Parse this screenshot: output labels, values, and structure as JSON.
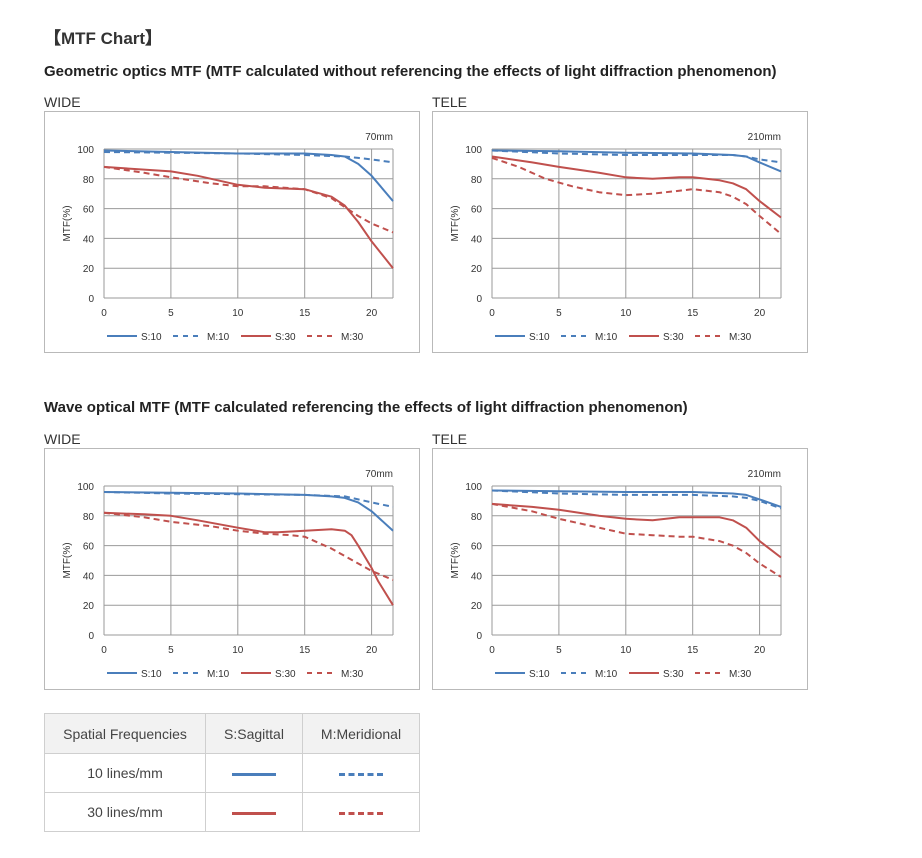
{
  "page": {
    "title": "【MTF Chart】",
    "sections": [
      {
        "heading": "Geometric optics MTF (MTF calculated without referencing the effects of light diffraction phenomenon)"
      },
      {
        "heading": "Wave optical MTF (MTF calculated referencing the effects of light diffraction phenomenon)"
      }
    ],
    "panels": [
      "WIDE",
      "TELE",
      "WIDE",
      "TELE"
    ]
  },
  "colors": {
    "sagittal_10": "#4a7ebb",
    "meridional_10": "#4a7ebb",
    "sagittal_30": "#c0504d",
    "meridional_30": "#c0504d",
    "grid": "#9a9a9a"
  },
  "chart_data": [
    {
      "type": "line",
      "annotation": "70mm",
      "ylabel": "MTF(%)",
      "xlabel": "",
      "xlim": [
        0,
        21.6
      ],
      "ylim": [
        0,
        100
      ],
      "xticks": [
        0,
        5,
        10,
        15,
        20
      ],
      "yticks": [
        0,
        20,
        40,
        60,
        80,
        100
      ],
      "grid": true,
      "legend": "bottom",
      "series": [
        {
          "name": "S:10",
          "style": "solid",
          "color": "#4a7ebb",
          "x": [
            0,
            5,
            10,
            15,
            17,
            18,
            19,
            20,
            21.6
          ],
          "y": [
            99,
            98,
            97,
            97,
            96,
            95,
            90,
            82,
            65
          ]
        },
        {
          "name": "M:10",
          "style": "dashed",
          "color": "#4a7ebb",
          "x": [
            0,
            5,
            10,
            15,
            18,
            19,
            20,
            21.6
          ],
          "y": [
            98,
            97.5,
            97,
            96,
            95,
            94,
            93,
            91
          ]
        },
        {
          "name": "S:30",
          "style": "solid",
          "color": "#c0504d",
          "x": [
            0,
            5,
            7,
            10,
            12,
            15,
            17,
            18,
            19,
            20,
            21.6
          ],
          "y": [
            88,
            85,
            82,
            76,
            74,
            73,
            68,
            62,
            51,
            38,
            20
          ]
        },
        {
          "name": "M:30",
          "style": "dashed",
          "color": "#c0504d",
          "x": [
            0,
            3,
            5,
            8,
            10,
            12,
            15,
            17,
            18,
            19,
            20,
            21.6
          ],
          "y": [
            88,
            84,
            81,
            77,
            75,
            75,
            73,
            67,
            61,
            55,
            50,
            44
          ]
        }
      ]
    },
    {
      "type": "line",
      "annotation": "210mm",
      "ylabel": "MTF(%)",
      "xlabel": "",
      "xlim": [
        0,
        21.6
      ],
      "ylim": [
        0,
        100
      ],
      "xticks": [
        0,
        5,
        10,
        15,
        20
      ],
      "yticks": [
        0,
        20,
        40,
        60,
        80,
        100
      ],
      "grid": true,
      "legend": "bottom",
      "series": [
        {
          "name": "S:10",
          "style": "solid",
          "color": "#4a7ebb",
          "x": [
            0,
            5,
            10,
            15,
            18,
            19,
            20,
            21.6
          ],
          "y": [
            99,
            98.5,
            97.5,
            97,
            96,
            95,
            91,
            85
          ]
        },
        {
          "name": "M:10",
          "style": "dashed",
          "color": "#4a7ebb",
          "x": [
            0,
            5,
            10,
            15,
            18,
            19,
            20,
            21.6
          ],
          "y": [
            99,
            97,
            96,
            96,
            96,
            95,
            93,
            91
          ]
        },
        {
          "name": "S:30",
          "style": "solid",
          "color": "#c0504d",
          "x": [
            0,
            3,
            5,
            8,
            10,
            12,
            14,
            15,
            17,
            18,
            19,
            20,
            21.6
          ],
          "y": [
            95,
            91,
            88,
            84,
            81,
            80,
            81,
            81,
            79,
            77,
            73,
            65,
            54
          ]
        },
        {
          "name": "M:30",
          "style": "dashed",
          "color": "#c0504d",
          "x": [
            0,
            2,
            4,
            6,
            8,
            10,
            12,
            14,
            15,
            17,
            18,
            19,
            20,
            21.6
          ],
          "y": [
            94,
            88,
            80,
            75,
            71,
            69,
            70,
            72,
            73,
            71,
            68,
            63,
            55,
            43
          ]
        }
      ]
    },
    {
      "type": "line",
      "annotation": "70mm",
      "ylabel": "MTF(%)",
      "xlabel": "",
      "xlim": [
        0,
        21.6
      ],
      "ylim": [
        0,
        100
      ],
      "xticks": [
        0,
        5,
        10,
        15,
        20
      ],
      "yticks": [
        0,
        20,
        40,
        60,
        80,
        100
      ],
      "grid": true,
      "legend": "bottom",
      "series": [
        {
          "name": "S:10",
          "style": "solid",
          "color": "#4a7ebb",
          "x": [
            0,
            5,
            10,
            15,
            17,
            18,
            19,
            20,
            21.6
          ],
          "y": [
            96,
            95.5,
            95,
            94,
            93,
            92,
            89,
            83,
            70
          ]
        },
        {
          "name": "M:10",
          "style": "dashed",
          "color": "#4a7ebb",
          "x": [
            0,
            5,
            10,
            15,
            18,
            19,
            20,
            21.6
          ],
          "y": [
            96,
            95,
            94.5,
            94,
            93,
            91,
            89,
            86
          ]
        },
        {
          "name": "S:30",
          "style": "solid",
          "color": "#c0504d",
          "x": [
            0,
            3,
            5,
            7,
            10,
            12,
            13,
            15,
            17,
            18,
            18.5,
            19,
            20,
            20.5,
            21.6
          ],
          "y": [
            82,
            81,
            80,
            77,
            72,
            69,
            69,
            70,
            71,
            70,
            67,
            60,
            45,
            36,
            20
          ]
        },
        {
          "name": "M:30",
          "style": "dashed",
          "color": "#c0504d",
          "x": [
            0,
            3,
            5,
            8,
            10,
            12,
            14,
            15,
            17,
            18,
            19,
            20,
            21.6
          ],
          "y": [
            82,
            79,
            76,
            73,
            70,
            68,
            67,
            66,
            58,
            53,
            48,
            43,
            37
          ]
        }
      ]
    },
    {
      "type": "line",
      "annotation": "210mm",
      "ylabel": "MTF(%)",
      "xlabel": "",
      "xlim": [
        0,
        21.6
      ],
      "ylim": [
        0,
        100
      ],
      "xticks": [
        0,
        5,
        10,
        15,
        20
      ],
      "yticks": [
        0,
        20,
        40,
        60,
        80,
        100
      ],
      "grid": true,
      "legend": "bottom",
      "series": [
        {
          "name": "S:10",
          "style": "solid",
          "color": "#4a7ebb",
          "x": [
            0,
            5,
            10,
            15,
            18,
            19,
            20,
            21.6
          ],
          "y": [
            97,
            96.5,
            96,
            96,
            95,
            94,
            91,
            86
          ]
        },
        {
          "name": "M:10",
          "style": "dashed",
          "color": "#4a7ebb",
          "x": [
            0,
            5,
            10,
            15,
            18,
            19,
            20,
            21.6
          ],
          "y": [
            97,
            95,
            94,
            94,
            93,
            92,
            90,
            85
          ]
        },
        {
          "name": "S:30",
          "style": "solid",
          "color": "#c0504d",
          "x": [
            0,
            3,
            5,
            8,
            10,
            12,
            14,
            15,
            17,
            18,
            19,
            20,
            21.6
          ],
          "y": [
            88,
            86,
            84,
            80,
            78,
            77,
            79,
            79,
            79,
            77,
            72,
            63,
            52
          ]
        },
        {
          "name": "M:30",
          "style": "dashed",
          "color": "#c0504d",
          "x": [
            0,
            3,
            5,
            8,
            10,
            12,
            14,
            15,
            17,
            18,
            19,
            20,
            21.6
          ],
          "y": [
            88,
            83,
            78,
            72,
            68,
            67,
            66,
            66,
            63,
            60,
            55,
            48,
            39
          ]
        }
      ]
    }
  ],
  "legend_table": {
    "headers": [
      "Spatial Frequencies",
      "S:Sagittal",
      "M:Meridional"
    ],
    "rows": [
      {
        "label": "10 lines/mm",
        "color": "#4a7ebb"
      },
      {
        "label": "30 lines/mm",
        "color": "#c0504d"
      }
    ]
  }
}
